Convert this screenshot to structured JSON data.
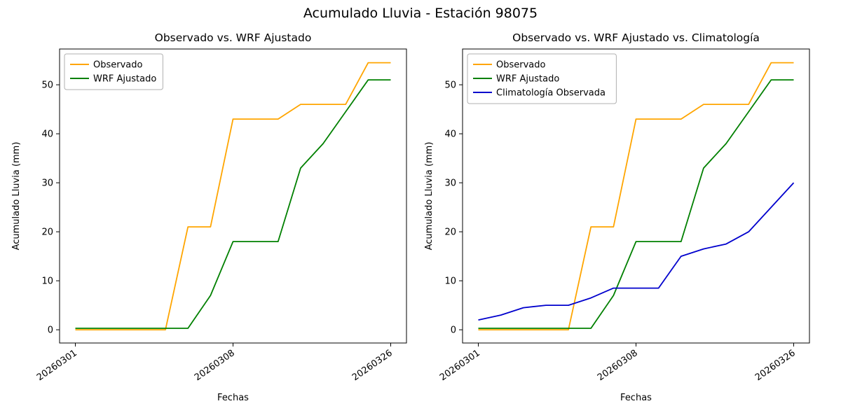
{
  "figure": {
    "title": "Acumulado Lluvia - Estación 98075"
  },
  "chart_data": [
    {
      "type": "line",
      "title": "Observado vs. WRF Ajustado",
      "xlabel": "Fechas",
      "ylabel": "Acumulado Lluvia (mm)",
      "x": [
        0,
        1,
        2,
        3,
        4,
        5,
        6,
        7,
        8,
        9,
        10,
        11,
        12,
        13,
        14
      ],
      "xlim": [
        -0.7,
        14.7
      ],
      "ylim": [
        -2.7,
        57.3
      ],
      "yticks": [
        0,
        10,
        20,
        30,
        40,
        50
      ],
      "xticks": {
        "positions": [
          0,
          7,
          14
        ],
        "labels": [
          "20260301",
          "20260308",
          "20260326"
        ]
      },
      "grid": false,
      "legend_position": "upper left",
      "series": [
        {
          "name": "Observado",
          "color": "#FFA500",
          "values": [
            0,
            0,
            0,
            0,
            0,
            21,
            21,
            43,
            43,
            43,
            46,
            46,
            46,
            54.5,
            54.5
          ]
        },
        {
          "name": "WRF Ajustado",
          "color": "#008000",
          "values": [
            0.3,
            0.3,
            0.3,
            0.3,
            0.3,
            0.3,
            7,
            18,
            18,
            18,
            33,
            38,
            44.5,
            51,
            51
          ]
        }
      ]
    },
    {
      "type": "line",
      "title": "Observado vs. WRF Ajustado vs. Climatología",
      "xlabel": "Fechas",
      "ylabel": "Acumulado Lluvia (mm)",
      "x": [
        0,
        1,
        2,
        3,
        4,
        5,
        6,
        7,
        8,
        9,
        10,
        11,
        12,
        13,
        14
      ],
      "xlim": [
        -0.7,
        14.7
      ],
      "ylim": [
        -2.7,
        57.3
      ],
      "yticks": [
        0,
        10,
        20,
        30,
        40,
        50
      ],
      "xticks": {
        "positions": [
          0,
          7,
          14
        ],
        "labels": [
          "20260301",
          "20260308",
          "20260326"
        ]
      },
      "grid": false,
      "legend_position": "upper left",
      "series": [
        {
          "name": "Observado",
          "color": "#FFA500",
          "values": [
            0,
            0,
            0,
            0,
            0,
            21,
            21,
            43,
            43,
            43,
            46,
            46,
            46,
            54.5,
            54.5
          ]
        },
        {
          "name": "WRF Ajustado",
          "color": "#008000",
          "values": [
            0.3,
            0.3,
            0.3,
            0.3,
            0.3,
            0.3,
            7,
            18,
            18,
            18,
            33,
            38,
            44.5,
            51,
            51
          ]
        },
        {
          "name": "Climatología Observada",
          "color": "#0000CD",
          "values": [
            2,
            3,
            4.5,
            5,
            5,
            6.5,
            8.5,
            8.5,
            8.5,
            15,
            16.5,
            17.5,
            20,
            25,
            30
          ]
        }
      ]
    }
  ]
}
